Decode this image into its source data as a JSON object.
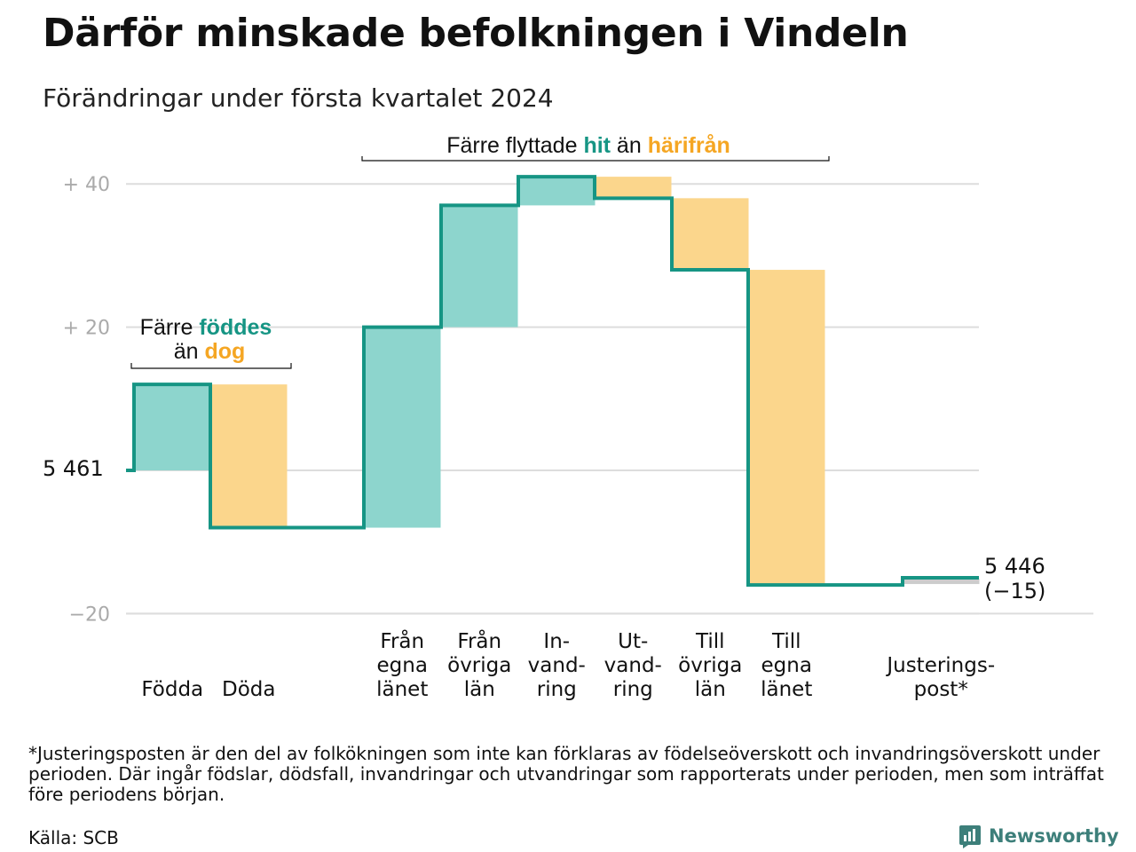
{
  "title": "Därför minskade befolkningen i Vindeln",
  "subtitle": "Förändringar under första kvartalet 2024",
  "colors": {
    "increase": "#8dd5cd",
    "decrease": "#fbd68c",
    "adjustment": "#cccccc",
    "line": "#169584",
    "accent_green": "#169584",
    "accent_orange": "#f5a623",
    "grid": "#dddddd",
    "brand": "#3d7f7a"
  },
  "chart_data": {
    "type": "waterfall",
    "start_value": 5461,
    "end_value": 5446,
    "end_change": -15,
    "start_label": "5 461",
    "end_label": "5 446",
    "end_change_label": "(−15)",
    "y_range": [
      -20,
      44
    ],
    "y_ticks": [
      {
        "value": 40,
        "label": "+ 40"
      },
      {
        "value": 20,
        "label": "+ 20"
      },
      {
        "value": -20,
        "label": "−20"
      }
    ],
    "steps": [
      {
        "label_lines": [
          "Födda"
        ],
        "value": 12,
        "kind": "increase"
      },
      {
        "label_lines": [
          "Döda"
        ],
        "value": -20,
        "kind": "decrease"
      },
      {
        "label_lines": [
          "Från",
          "egna",
          "länet"
        ],
        "value": 28,
        "kind": "increase"
      },
      {
        "label_lines": [
          "Från",
          "övriga",
          "län"
        ],
        "value": 17,
        "kind": "increase"
      },
      {
        "label_lines": [
          "In-",
          "vand-",
          "ring"
        ],
        "value": 4,
        "kind": "increase"
      },
      {
        "label_lines": [
          "Ut-",
          "vand-",
          "ring"
        ],
        "value": -3,
        "kind": "decrease"
      },
      {
        "label_lines": [
          "Till",
          "övriga",
          "län"
        ],
        "value": -10,
        "kind": "decrease"
      },
      {
        "label_lines": [
          "Till",
          "egna",
          "länet"
        ],
        "value": -44,
        "kind": "decrease"
      },
      {
        "label_lines": [
          "Justerings-",
          "post*"
        ],
        "value": 1,
        "kind": "adjustment"
      }
    ],
    "annotations": [
      {
        "id": "births",
        "parts": [
          {
            "text": "Färre ",
            "color": "#111111"
          },
          {
            "text": "föddes",
            "color": "#169584"
          }
        ],
        "parts2": [
          {
            "text": "än ",
            "color": "#111111"
          },
          {
            "text": "dog",
            "color": "#f5a623"
          }
        ]
      },
      {
        "id": "migration",
        "parts": [
          {
            "text": "Färre flyttade ",
            "color": "#111111"
          },
          {
            "text": "hit",
            "color": "#169584"
          },
          {
            "text": " än ",
            "color": "#111111"
          },
          {
            "text": "härifrån",
            "color": "#f5a623"
          }
        ]
      }
    ]
  },
  "footnote": "*Justeringsposten är den del av folkökningen som inte kan förklaras av födelseöverskott och invandringsöverskott under perioden. Där ingår födslar, dödsfall, invandringar och utvandringar som rapporterats under perioden, men som inträffat före periodens början.",
  "source": "Källa: SCB",
  "brand": {
    "name": "Newsworthy",
    "icon": "newsworthy-logo-icon"
  }
}
